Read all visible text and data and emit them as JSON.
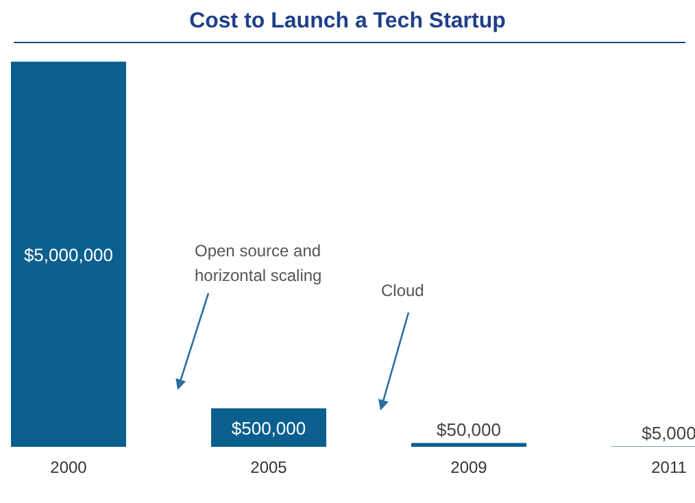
{
  "chart_data": {
    "type": "bar",
    "title": "Cost to Launch a Tech Startup",
    "categories": [
      "2000",
      "2005",
      "2009",
      "2011"
    ],
    "values": [
      5000000,
      500000,
      50000,
      5000
    ],
    "value_labels": [
      "$5,000,000",
      "$500,000",
      "$50,000",
      "$5,000"
    ],
    "color": "#0a5f8f",
    "annotations": [
      "Open source and horizontal scaling",
      "Cloud"
    ]
  }
}
